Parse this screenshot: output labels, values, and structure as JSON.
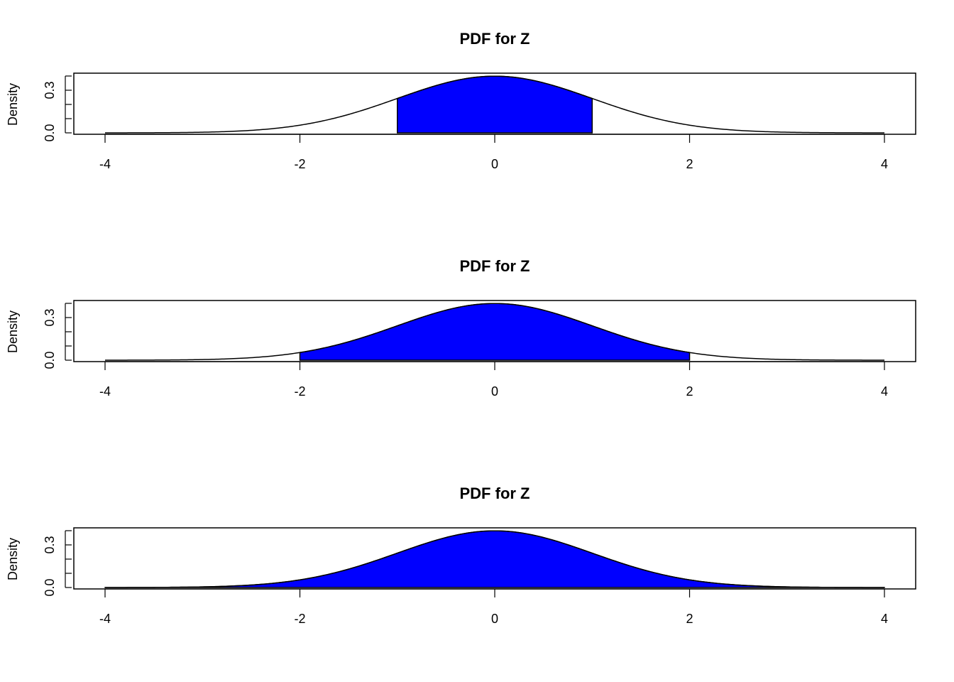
{
  "fill_color": "#0000ff",
  "line_color": "#000000",
  "chart_data": [
    {
      "type": "area",
      "title": "PDF for Z",
      "xlabel": "",
      "ylabel": "Density",
      "xlim": [
        -4,
        4
      ],
      "ylim": [
        0,
        0.4
      ],
      "x_ticks": [
        -4,
        -2,
        0,
        2,
        4
      ],
      "y_ticks": [
        0.0,
        0.1,
        0.2,
        0.3,
        0.4
      ],
      "y_tick_labels": [
        "0.0",
        "0.3"
      ],
      "curve": "standard normal density",
      "shaded_region": [
        -1,
        1
      ],
      "fill": "#0000ff"
    },
    {
      "type": "area",
      "title": "PDF for Z",
      "xlabel": "",
      "ylabel": "Density",
      "xlim": [
        -4,
        4
      ],
      "ylim": [
        0,
        0.4
      ],
      "x_ticks": [
        -4,
        -2,
        0,
        2,
        4
      ],
      "y_ticks": [
        0.0,
        0.1,
        0.2,
        0.3,
        0.4
      ],
      "y_tick_labels": [
        "0.0",
        "0.3"
      ],
      "curve": "standard normal density",
      "shaded_region": [
        -2,
        2
      ],
      "fill": "#0000ff"
    },
    {
      "type": "area",
      "title": "PDF for Z",
      "xlabel": "",
      "ylabel": "Density",
      "xlim": [
        -4,
        4
      ],
      "ylim": [
        0,
        0.4
      ],
      "x_ticks": [
        -4,
        -2,
        0,
        2,
        4
      ],
      "y_ticks": [
        0.0,
        0.1,
        0.2,
        0.3,
        0.4
      ],
      "y_tick_labels": [
        "0.0",
        "0.3"
      ],
      "curve": "standard normal density",
      "shaded_region": [
        -4,
        4
      ],
      "fill": "#0000ff"
    }
  ]
}
